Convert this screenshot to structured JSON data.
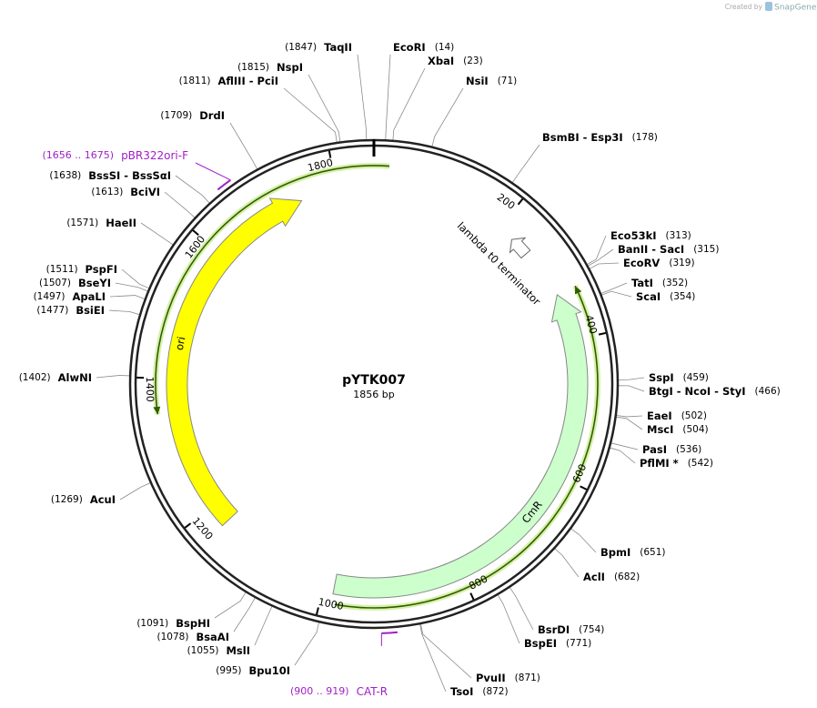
{
  "credit": {
    "prefix": "Created by",
    "brand": "SnapGene"
  },
  "plasmid": {
    "name": "pYTK007",
    "length": "1856 bp"
  },
  "ruler": [
    200,
    400,
    600,
    800,
    1000,
    1200,
    1400,
    1600,
    1800
  ],
  "features": [
    {
      "label": "ori"
    },
    {
      "label": "CmR"
    },
    {
      "label": "lambda t0 terminator"
    }
  ],
  "primers": [
    {
      "location": "(1656 .. 1675)",
      "name": "pBR322ori-F"
    },
    {
      "location": "(900 .. 919)",
      "name": "CAT-R"
    }
  ],
  "sites": [
    {
      "name": "EcoRI",
      "location": "(14)"
    },
    {
      "name": "XbaI",
      "location": "(23)"
    },
    {
      "name": "NsiI",
      "location": "(71)"
    },
    {
      "name": "BsmBI - Esp3I",
      "location": "(178)"
    },
    {
      "name": "Eco53kI",
      "location": "(313)"
    },
    {
      "name": "BanII - SacI",
      "location": "(315)"
    },
    {
      "name": "EcoRV",
      "location": "(319)"
    },
    {
      "name": "TatI",
      "location": "(352)"
    },
    {
      "name": "ScaI",
      "location": "(354)"
    },
    {
      "name": "SspI",
      "location": "(459)"
    },
    {
      "name": "BtgI - NcoI - StyI",
      "location": "(466)"
    },
    {
      "name": "EaeI",
      "location": "(502)"
    },
    {
      "name": "MscI",
      "location": "(504)"
    },
    {
      "name": "PasI",
      "location": "(536)"
    },
    {
      "name": "PflMI *",
      "location": "(542)"
    },
    {
      "name": "BpmI",
      "location": "(651)"
    },
    {
      "name": "AclI",
      "location": "(682)"
    },
    {
      "name": "BsrDI",
      "location": "(754)"
    },
    {
      "name": "BspEI",
      "location": "(771)"
    },
    {
      "name": "PvuII",
      "location": "(871)"
    },
    {
      "name": "TsoI",
      "location": "(872)"
    },
    {
      "name": "Bpu10I",
      "location": "(995)"
    },
    {
      "name": "MslI",
      "location": "(1055)"
    },
    {
      "name": "BsaAI",
      "location": "(1078)"
    },
    {
      "name": "BspHI",
      "location": "(1091)"
    },
    {
      "name": "AcuI",
      "location": "(1269)"
    },
    {
      "name": "AlwNI",
      "location": "(1402)"
    },
    {
      "name": "BsiEI",
      "location": "(1477)"
    },
    {
      "name": "ApaLI",
      "location": "(1497)"
    },
    {
      "name": "BseYI",
      "location": "(1507)"
    },
    {
      "name": "PspFI",
      "location": "(1511)"
    },
    {
      "name": "HaeII",
      "location": "(1571)"
    },
    {
      "name": "BciVI",
      "location": "(1613)"
    },
    {
      "name": "BssSI - BssSαI",
      "location": "(1638)"
    },
    {
      "name": "DrdI",
      "location": "(1709)"
    },
    {
      "name": "AflIII - PciI",
      "location": "(1811)"
    },
    {
      "name": "NspI",
      "location": "(1815)"
    },
    {
      "name": "TaqII",
      "location": "(1847)"
    }
  ]
}
